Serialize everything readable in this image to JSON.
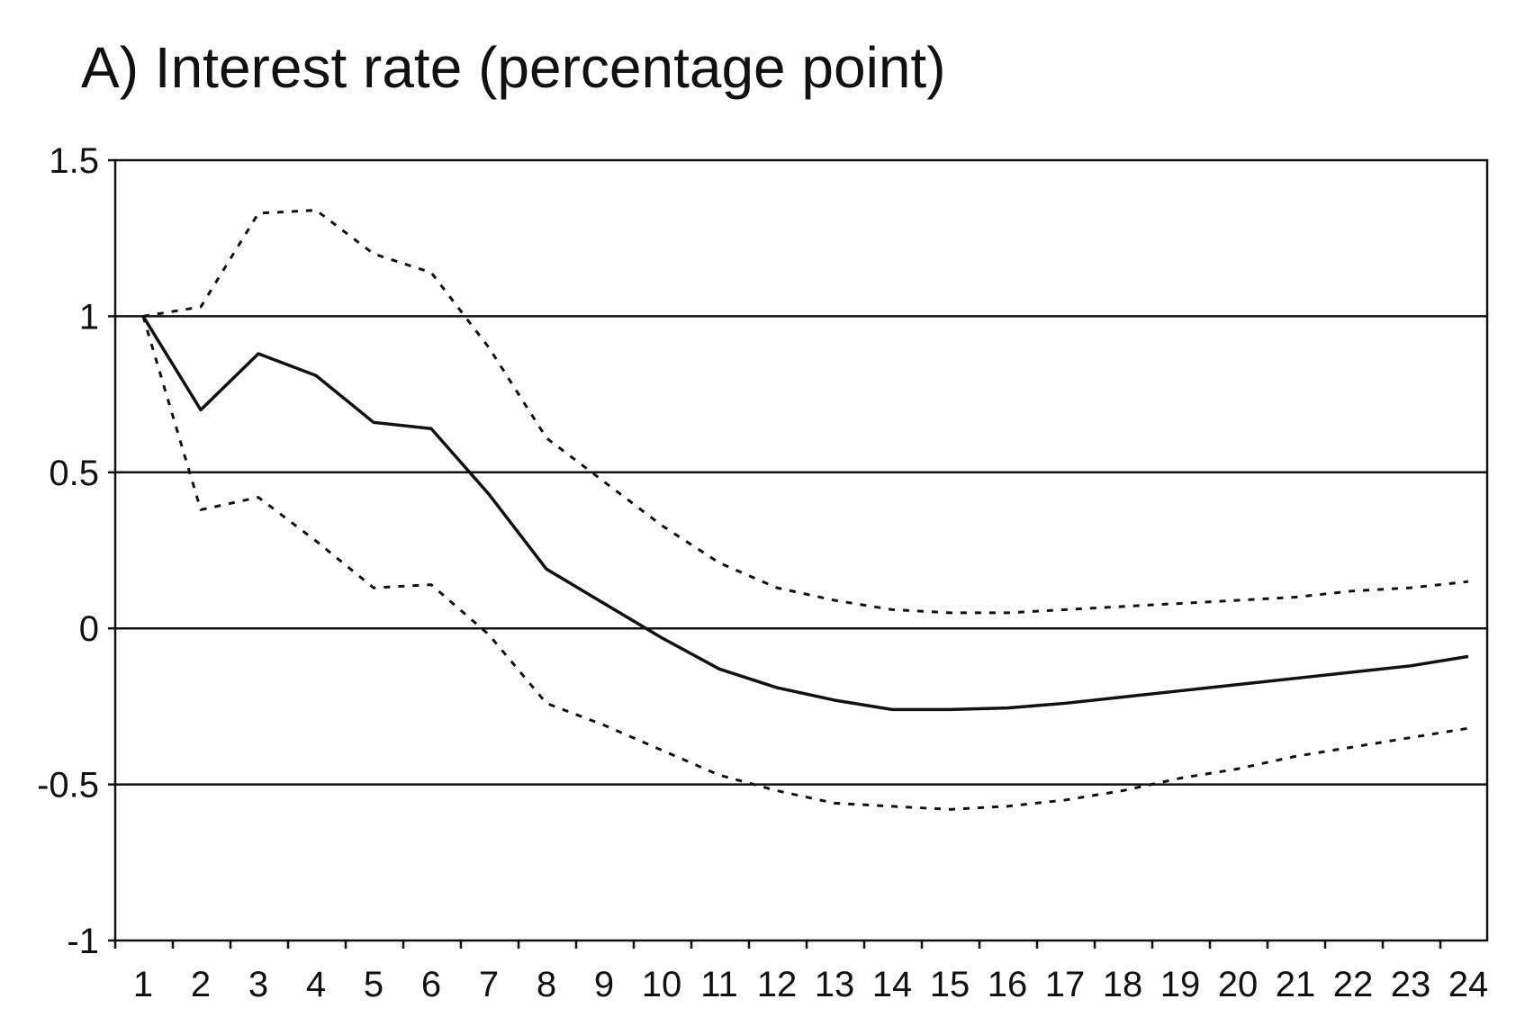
{
  "chart_data": {
    "type": "line",
    "title": "A) Interest rate (percentage point)",
    "xlabel": "",
    "ylabel": "",
    "x": [
      1,
      2,
      3,
      4,
      5,
      6,
      7,
      8,
      9,
      10,
      11,
      12,
      13,
      14,
      15,
      16,
      17,
      18,
      19,
      20,
      21,
      22,
      23,
      24
    ],
    "x_tick_labels": [
      "1",
      "2",
      "3",
      "4",
      "5",
      "6",
      "7",
      "8",
      "9",
      "10",
      "11",
      "12",
      "13",
      "14",
      "15",
      "16",
      "17",
      "18",
      "19",
      "20",
      "21",
      "22",
      "23",
      "24"
    ],
    "y_tick_labels": [
      "1.5",
      "1",
      "0.5",
      "0",
      "-0.5",
      "-1"
    ],
    "y_ticks": [
      1.5,
      1,
      0.5,
      0,
      -0.5,
      -1
    ],
    "ylim": [
      -1,
      1.5
    ],
    "grid": "horizontal",
    "legend": "none",
    "series": [
      {
        "style": "solid",
        "color": "#111111",
        "values": [
          1.0,
          0.7,
          0.88,
          0.81,
          0.66,
          0.64,
          0.43,
          0.19,
          0.08,
          -0.03,
          -0.13,
          -0.19,
          -0.23,
          -0.26,
          -0.26,
          -0.255,
          -0.24,
          -0.22,
          -0.2,
          -0.18,
          -0.16,
          -0.14,
          -0.12,
          -0.09
        ]
      },
      {
        "style": "dotted",
        "color": "#111111",
        "values": [
          1.0,
          1.03,
          1.33,
          1.34,
          1.2,
          1.14,
          0.9,
          0.61,
          0.47,
          0.33,
          0.21,
          0.13,
          0.09,
          0.06,
          0.05,
          0.05,
          0.06,
          0.07,
          0.08,
          0.09,
          0.1,
          0.12,
          0.13,
          0.15
        ]
      },
      {
        "style": "dotted",
        "color": "#111111",
        "values": [
          1.0,
          0.38,
          0.42,
          0.28,
          0.13,
          0.14,
          -0.02,
          -0.24,
          -0.31,
          -0.39,
          -0.47,
          -0.52,
          -0.56,
          -0.57,
          -0.58,
          -0.57,
          -0.55,
          -0.52,
          -0.48,
          -0.45,
          -0.41,
          -0.38,
          -0.35,
          -0.32
        ]
      }
    ]
  }
}
